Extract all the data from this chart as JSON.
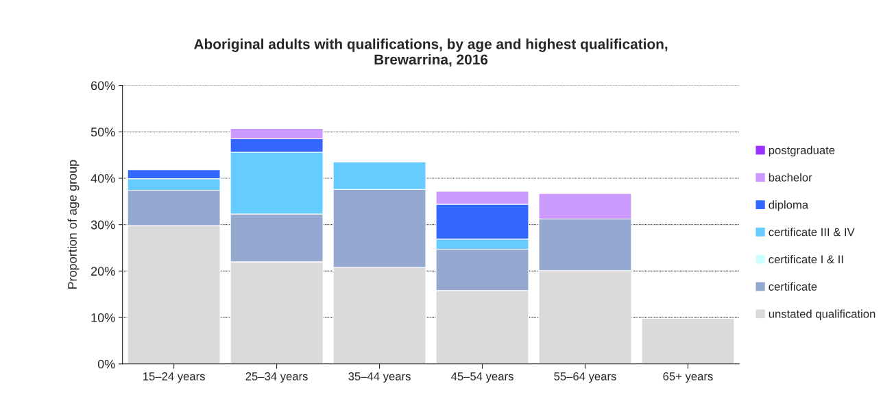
{
  "chart_data": {
    "type": "bar",
    "stacked": true,
    "title": "Aboriginal adults with qualifications, by age and highest qualification,\nBrewarrina, 2016",
    "ylabel": "Proportion of age group",
    "categories": [
      "15–24 years",
      "25–34 years",
      "35–44 years",
      "45–54 years",
      "55–64 years",
      "65+ years"
    ],
    "series": [
      {
        "name": "unstated qualification",
        "color": "#dadada",
        "values": [
          29.8,
          22.0,
          20.8,
          15.8,
          20.1,
          9.8
        ]
      },
      {
        "name": "certificate",
        "color": "#95a9d0",
        "values": [
          7.6,
          10.3,
          16.8,
          8.9,
          11.1,
          0
        ]
      },
      {
        "name": "certificate I & II",
        "color": "#ccffff",
        "values": [
          0,
          0,
          0,
          0,
          0,
          0
        ]
      },
      {
        "name": "certificate III & IV",
        "color": "#66ccff",
        "values": [
          2.5,
          13.3,
          5.9,
          2.2,
          0,
          0
        ]
      },
      {
        "name": "diploma",
        "color": "#3366ff",
        "values": [
          1.9,
          2.9,
          0,
          7.5,
          0,
          0
        ]
      },
      {
        "name": "bachelor",
        "color": "#cc99ff",
        "values": [
          0,
          2.2,
          0,
          2.8,
          5.5,
          0
        ]
      },
      {
        "name": "postgraduate",
        "color": "#9933ff",
        "values": [
          0,
          0,
          0,
          0,
          0,
          0
        ]
      }
    ],
    "ylim": [
      0,
      60
    ],
    "yticks": [
      {
        "value": 0,
        "label": "0%"
      },
      {
        "value": 10,
        "label": "10%"
      },
      {
        "value": 20,
        "label": "20%"
      },
      {
        "value": 30,
        "label": "30%"
      },
      {
        "value": 40,
        "label": "40%"
      },
      {
        "value": 50,
        "label": "50%"
      },
      {
        "value": 60,
        "label": "60%"
      }
    ],
    "grid": "y",
    "legend": "right"
  }
}
